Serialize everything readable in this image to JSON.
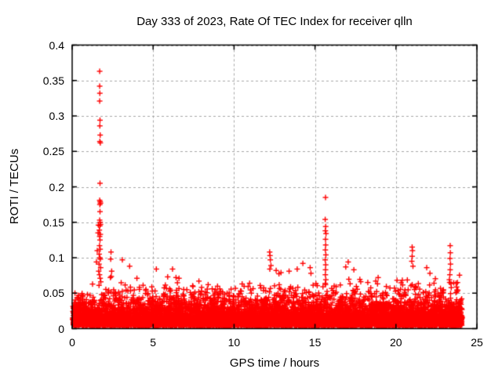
{
  "figure": {
    "background": "#ffffff",
    "border_color": "#000000",
    "text_color": "#000000"
  },
  "chart_data": {
    "type": "scatter",
    "title": "Day 333 of 2023, Rate Of TEC Index for receiver qlln",
    "xlabel": "GPS time / hours",
    "ylabel": "ROTI / TECUs",
    "xlim": [
      0,
      25
    ],
    "ylim": [
      0,
      0.4
    ],
    "xticks": [
      [
        0,
        "0"
      ],
      [
        5,
        "5"
      ],
      [
        10,
        "10"
      ],
      [
        15,
        "15"
      ],
      [
        20,
        "20"
      ],
      [
        25,
        "25"
      ]
    ],
    "yticks": [
      [
        0,
        "0"
      ],
      [
        0.05,
        "0.05"
      ],
      [
        0.1,
        "0.1"
      ],
      [
        0.15,
        "0.15"
      ],
      [
        0.2,
        "0.2"
      ],
      [
        0.25,
        "0.25"
      ],
      [
        0.3,
        "0.3"
      ],
      [
        0.35,
        "0.35"
      ],
      [
        0.4,
        "0.4"
      ]
    ],
    "grid": "dashed",
    "grid_color": "#a6a6a6",
    "legend": "none",
    "marker": "plus",
    "marker_color": "#ff0000",
    "marker_size_px": 7,
    "series_name": "ROTI",
    "outlier_points": [
      [
        1.7,
        0.363
      ],
      [
        1.7,
        0.342
      ],
      [
        1.71,
        0.332
      ],
      [
        1.7,
        0.321
      ],
      [
        1.72,
        0.294
      ],
      [
        1.71,
        0.286
      ],
      [
        1.73,
        0.273
      ],
      [
        1.71,
        0.264
      ],
      [
        1.74,
        0.262
      ],
      [
        1.72,
        0.205
      ],
      [
        1.7,
        0.181
      ],
      [
        1.73,
        0.179
      ],
      [
        1.75,
        0.177
      ],
      [
        1.71,
        0.175
      ],
      [
        1.72,
        0.165
      ],
      [
        1.7,
        0.153
      ],
      [
        1.73,
        0.15
      ],
      [
        1.75,
        0.147
      ],
      [
        1.71,
        0.145
      ],
      [
        1.68,
        0.139
      ],
      [
        1.62,
        0.146
      ],
      [
        1.6,
        0.135
      ],
      [
        1.74,
        0.133
      ],
      [
        1.7,
        0.13
      ],
      [
        1.72,
        0.125
      ],
      [
        1.69,
        0.117
      ],
      [
        1.73,
        0.112
      ],
      [
        1.55,
        0.11
      ],
      [
        1.67,
        0.105
      ],
      [
        1.71,
        0.1
      ],
      [
        1.74,
        0.098
      ],
      [
        1.66,
        0.091
      ],
      [
        1.5,
        0.094
      ],
      [
        1.76,
        0.086
      ],
      [
        1.64,
        0.081
      ],
      [
        1.69,
        0.076
      ],
      [
        1.73,
        0.071
      ],
      [
        1.77,
        0.066
      ],
      [
        1.66,
        0.061
      ],
      [
        2.4,
        0.108
      ],
      [
        2.38,
        0.098
      ],
      [
        2.44,
        0.081
      ],
      [
        2.36,
        0.072
      ],
      [
        3.1,
        0.097
      ],
      [
        3.55,
        0.088
      ],
      [
        4.0,
        0.071
      ],
      [
        5.2,
        0.084
      ],
      [
        5.9,
        0.073
      ],
      [
        6.2,
        0.084
      ],
      [
        6.6,
        0.071
      ],
      [
        7.83,
        0.067
      ],
      [
        8.4,
        0.062
      ],
      [
        10.5,
        0.063
      ],
      [
        10.96,
        0.064
      ],
      [
        12.2,
        0.108
      ],
      [
        12.22,
        0.103
      ],
      [
        12.24,
        0.097
      ],
      [
        12.28,
        0.089
      ],
      [
        12.21,
        0.084
      ],
      [
        12.6,
        0.082
      ],
      [
        12.9,
        0.079
      ],
      [
        13.4,
        0.081
      ],
      [
        13.9,
        0.084
      ],
      [
        14.25,
        0.092
      ],
      [
        14.7,
        0.086
      ],
      [
        14.75,
        0.078
      ],
      [
        15.65,
        0.185
      ],
      [
        15.63,
        0.154
      ],
      [
        15.66,
        0.144
      ],
      [
        15.64,
        0.138
      ],
      [
        15.68,
        0.134
      ],
      [
        15.65,
        0.126
      ],
      [
        15.66,
        0.118
      ],
      [
        15.64,
        0.111
      ],
      [
        15.67,
        0.104
      ],
      [
        15.63,
        0.097
      ],
      [
        15.66,
        0.09
      ],
      [
        15.65,
        0.083
      ],
      [
        15.64,
        0.076
      ],
      [
        15.67,
        0.069
      ],
      [
        15.65,
        0.062
      ],
      [
        16.9,
        0.087
      ],
      [
        17.05,
        0.094
      ],
      [
        17.4,
        0.083
      ],
      [
        18.9,
        0.072
      ],
      [
        21.0,
        0.115
      ],
      [
        21.02,
        0.11
      ],
      [
        21.0,
        0.102
      ],
      [
        20.98,
        0.095
      ],
      [
        21.05,
        0.088
      ],
      [
        21.9,
        0.086
      ],
      [
        22.1,
        0.078
      ],
      [
        23.35,
        0.117
      ],
      [
        23.36,
        0.107
      ],
      [
        23.34,
        0.099
      ],
      [
        23.37,
        0.091
      ],
      [
        23.35,
        0.083
      ],
      [
        23.33,
        0.076
      ],
      [
        23.3,
        0.069
      ],
      [
        23.8,
        0.065
      ]
    ],
    "dense_band": {
      "note": "solid band of low ROTI values hugging the x-axis for the whole day",
      "n_points": 9000,
      "x_range": [
        0.04,
        24.08
      ],
      "y_floor": 0.004,
      "y_exponential_mean": 0.0125,
      "hourly_max": [
        0.052,
        0.065,
        0.075,
        0.072,
        0.07,
        0.072,
        0.074,
        0.066,
        0.06,
        0.058,
        0.064,
        0.07,
        0.078,
        0.074,
        0.072,
        0.068,
        0.068,
        0.074,
        0.068,
        0.062,
        0.072,
        0.08,
        0.076,
        0.082
      ],
      "seed": 1333
    }
  }
}
